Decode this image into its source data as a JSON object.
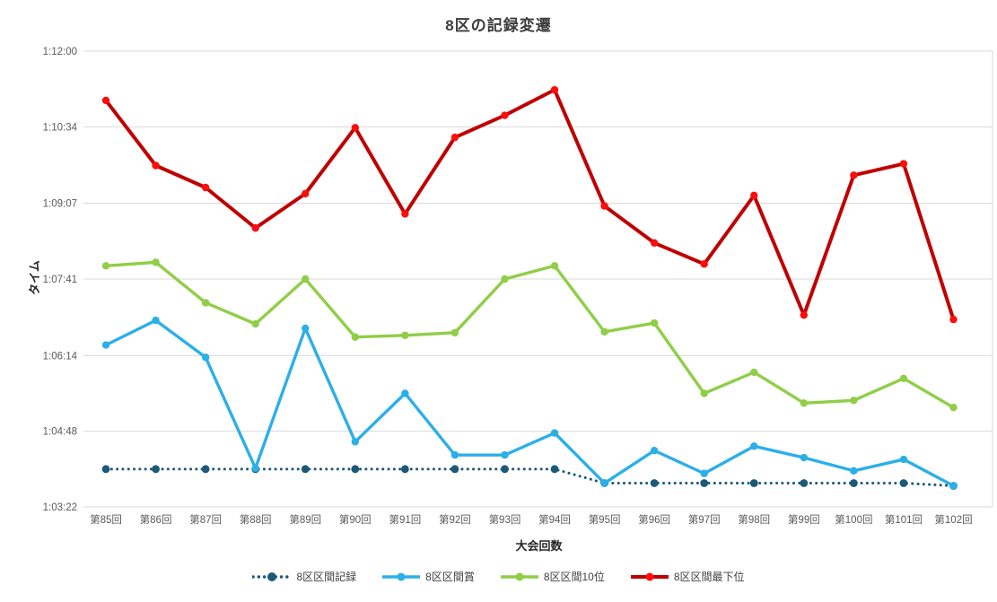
{
  "chart_data": {
    "type": "line",
    "title": "8区の記録変遷",
    "xlabel": "大会回数",
    "ylabel": "タイム",
    "grid": true,
    "legend_position": "bottom",
    "y_min": "1:03:22",
    "y_max": "1:12:00",
    "y_ticks": [
      "1:12:00",
      "1:10:34",
      "1:09:07",
      "1:07:41",
      "1:06:14",
      "1:04:48",
      "1:03:22"
    ],
    "categories": [
      "第85回",
      "第86回",
      "第87回",
      "第88回",
      "第89回",
      "第90回",
      "第91回",
      "第92回",
      "第93回",
      "第94回",
      "第95回",
      "第96回",
      "第97回",
      "第98回",
      "第99回",
      "第100回",
      "第101回",
      "第102回"
    ],
    "colors": {
      "record": "#1C5879",
      "winner": "#2BAFE8",
      "top10": "#8FCE46",
      "last_line": "#C00000",
      "last_marker": "#FF0C0C",
      "grid": "#D9D9D9",
      "tick_text": "#595959"
    },
    "series": [
      {
        "id": "record",
        "name": "8区区間記録",
        "style": "dotted",
        "color": "#1C5879",
        "values": [
          "1:04:05",
          "1:04:05",
          "1:04:05",
          "1:04:05",
          "1:04:05",
          "1:04:05",
          "1:04:05",
          "1:04:05",
          "1:04:05",
          "1:04:05",
          "1:03:49",
          "1:03:49",
          "1:03:49",
          "1:03:49",
          "1:03:49",
          "1:03:49",
          "1:03:49",
          "1:03:46"
        ]
      },
      {
        "id": "winner",
        "name": "8区区間賞",
        "style": "solid",
        "color": "#2BAFE8",
        "values": [
          "1:06:26",
          "1:06:54",
          "1:06:12",
          "1:04:06",
          "1:06:45",
          "1:04:36",
          "1:05:31",
          "1:04:21",
          "1:04:21",
          "1:04:46",
          "1:03:49",
          "1:04:26",
          "1:04:00",
          "1:04:31",
          "1:04:18",
          "1:04:03",
          "1:04:16",
          "1:03:46"
        ]
      },
      {
        "id": "top10",
        "name": "8区区間10位",
        "style": "solid",
        "color": "#8FCE46",
        "values": [
          "1:07:56",
          "1:08:00",
          "1:07:14",
          "1:06:50",
          "1:07:41",
          "1:06:35",
          "1:06:37",
          "1:06:40",
          "1:07:41",
          "1:07:56",
          "1:06:41",
          "1:06:51",
          "1:05:31",
          "1:05:55",
          "1:05:20",
          "1:05:23",
          "1:05:48",
          "1:05:15"
        ]
      },
      {
        "id": "last",
        "name": "8区区間最下位",
        "style": "solid",
        "color": "#C00000",
        "marker_color": "#FF0C0C",
        "values": [
          "1:11:04",
          "1:09:50",
          "1:09:25",
          "1:08:39",
          "1:09:18",
          "1:10:33",
          "1:08:55",
          "1:10:22",
          "1:10:47",
          "1:11:16",
          "1:09:04",
          "1:08:22",
          "1:07:58",
          "1:09:16",
          "1:07:00",
          "1:09:39",
          "1:09:52",
          "1:06:55"
        ]
      }
    ]
  }
}
